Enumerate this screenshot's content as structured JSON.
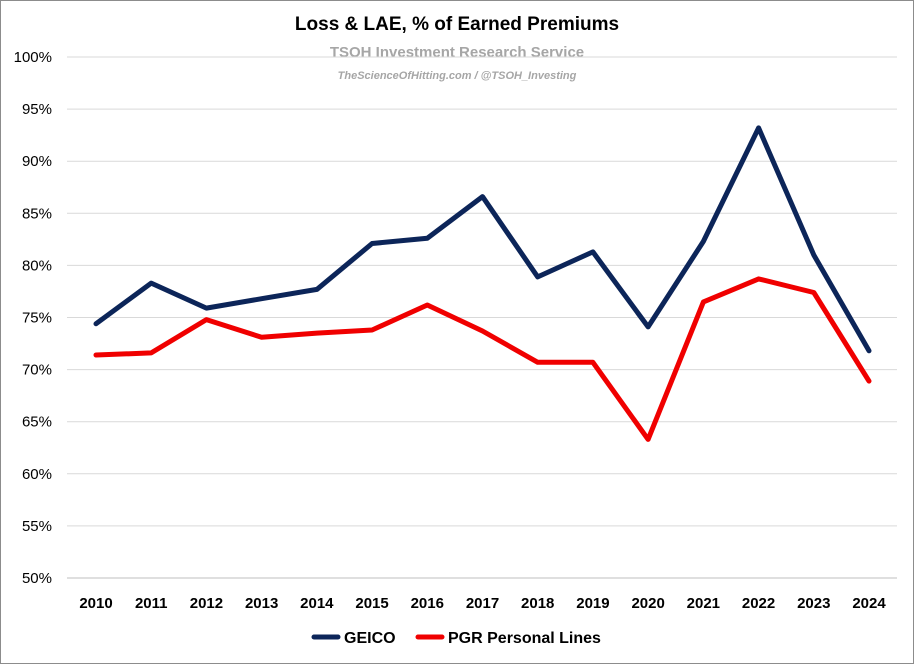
{
  "chart_data": {
    "type": "line",
    "title": "Loss & LAE, % of Earned Premiums",
    "subtitle": "TSOH Investment Research Service",
    "credit": "TheScienceOfHitting.com / @TSOH_Investing",
    "xlabel": "",
    "ylabel": "",
    "categories": [
      "2010",
      "2011",
      "2012",
      "2013",
      "2014",
      "2015",
      "2016",
      "2017",
      "2018",
      "2019",
      "2020",
      "2021",
      "2022",
      "2023",
      "2024"
    ],
    "ylim": [
      50,
      100
    ],
    "yticks": [
      50,
      55,
      60,
      65,
      70,
      75,
      80,
      85,
      90,
      95,
      100
    ],
    "ytick_labels": [
      "50%",
      "55%",
      "60%",
      "65%",
      "70%",
      "75%",
      "80%",
      "85%",
      "90%",
      "95%",
      "100%"
    ],
    "grid": true,
    "legend_position": "bottom",
    "series": [
      {
        "name": "GEICO",
        "color": "#0c2559",
        "values": [
          74.4,
          78.3,
          75.9,
          76.8,
          77.7,
          82.1,
          82.6,
          86.6,
          78.9,
          81.3,
          74.1,
          82.3,
          93.2,
          81.0,
          71.8
        ]
      },
      {
        "name": "PGR Personal Lines",
        "color": "#f00000",
        "values": [
          71.4,
          71.6,
          74.8,
          73.1,
          73.5,
          73.8,
          76.2,
          73.7,
          70.7,
          70.7,
          63.3,
          76.5,
          78.7,
          77.4,
          68.9
        ]
      }
    ]
  }
}
